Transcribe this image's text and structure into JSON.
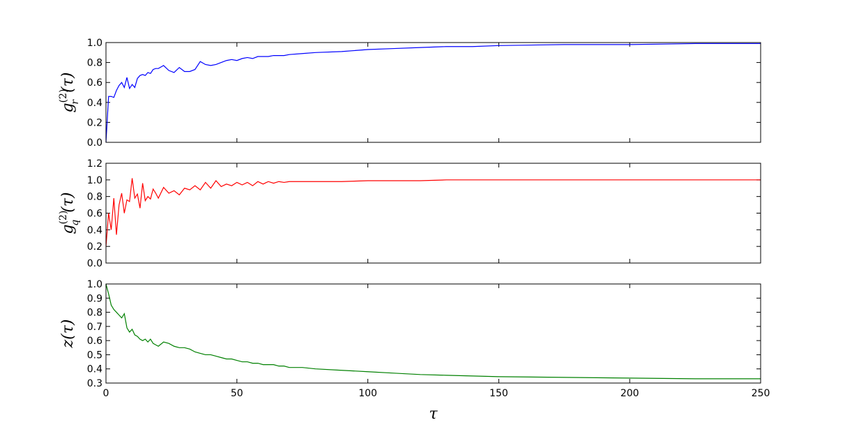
{
  "chart_data": [
    {
      "type": "line",
      "color": "#0000ff",
      "ylabel": {
        "base": "g",
        "sup": "(2)",
        "sub": "r",
        "arg": "(τ)"
      },
      "x": [
        0,
        1,
        2,
        3,
        4,
        5,
        6,
        7,
        8,
        9,
        10,
        11,
        12,
        13,
        14,
        15,
        16,
        17,
        18,
        19,
        20,
        22,
        24,
        26,
        28,
        30,
        32,
        34,
        36,
        38,
        40,
        42,
        44,
        46,
        48,
        50,
        52,
        54,
        56,
        58,
        60,
        62,
        64,
        66,
        68,
        70,
        75,
        80,
        90,
        100,
        110,
        120,
        130,
        140,
        150,
        175,
        200,
        225,
        250
      ],
      "values": [
        0.0,
        0.46,
        0.46,
        0.45,
        0.52,
        0.57,
        0.6,
        0.55,
        0.65,
        0.54,
        0.58,
        0.55,
        0.64,
        0.67,
        0.68,
        0.67,
        0.7,
        0.69,
        0.73,
        0.74,
        0.74,
        0.77,
        0.72,
        0.7,
        0.75,
        0.71,
        0.71,
        0.73,
        0.81,
        0.78,
        0.77,
        0.78,
        0.8,
        0.82,
        0.83,
        0.82,
        0.84,
        0.85,
        0.84,
        0.86,
        0.86,
        0.86,
        0.87,
        0.87,
        0.87,
        0.88,
        0.89,
        0.9,
        0.91,
        0.93,
        0.94,
        0.95,
        0.96,
        0.96,
        0.97,
        0.98,
        0.98,
        0.99,
        0.99
      ],
      "xlim": [
        0,
        250
      ],
      "xticks": [
        0,
        50,
        100,
        150,
        200,
        250
      ],
      "ylim": [
        0,
        1
      ],
      "yticks": [
        {
          "value": 0,
          "label": "0.0"
        },
        0.2,
        0.4,
        0.6,
        0.8,
        {
          "value": 1,
          "label": "1.0"
        }
      ]
    },
    {
      "type": "line",
      "color": "#ff0000",
      "ylabel": {
        "base": "g",
        "sup": "(2)",
        "sub": "q",
        "arg": "(τ)"
      },
      "x": [
        0,
        1,
        2,
        3,
        4,
        5,
        6,
        7,
        8,
        9,
        10,
        11,
        12,
        13,
        14,
        15,
        16,
        17,
        18,
        19,
        20,
        22,
        24,
        26,
        28,
        30,
        32,
        34,
        36,
        38,
        40,
        42,
        44,
        46,
        48,
        50,
        52,
        54,
        56,
        58,
        60,
        62,
        64,
        66,
        68,
        70,
        75,
        80,
        90,
        100,
        110,
        120,
        130,
        140,
        150,
        175,
        200,
        225,
        250
      ],
      "values": [
        0.2,
        0.6,
        0.4,
        0.78,
        0.34,
        0.7,
        0.84,
        0.6,
        0.76,
        0.74,
        1.02,
        0.78,
        0.83,
        0.66,
        0.96,
        0.75,
        0.8,
        0.77,
        0.89,
        0.84,
        0.78,
        0.91,
        0.84,
        0.87,
        0.82,
        0.9,
        0.88,
        0.93,
        0.88,
        0.97,
        0.9,
        0.99,
        0.92,
        0.95,
        0.93,
        0.97,
        0.94,
        0.97,
        0.93,
        0.98,
        0.95,
        0.98,
        0.96,
        0.98,
        0.97,
        0.98,
        0.98,
        0.98,
        0.98,
        0.99,
        0.99,
        0.99,
        1.0,
        1.0,
        1.0,
        1.0,
        1.0,
        1.0,
        1.0
      ],
      "xlim": [
        0,
        250
      ],
      "xticks": [
        0,
        50,
        100,
        150,
        200,
        250
      ],
      "ylim": [
        0,
        1.2
      ],
      "yticks": [
        {
          "value": 0,
          "label": "0.0"
        },
        0.2,
        0.4,
        0.6,
        0.8,
        {
          "value": 1,
          "label": "1.0"
        },
        1.2
      ]
    },
    {
      "type": "line",
      "color": "#008000",
      "ylabel": "z(τ)",
      "xlabel": "τ",
      "x": [
        0,
        1,
        2,
        3,
        4,
        5,
        6,
        7,
        8,
        9,
        10,
        11,
        12,
        13,
        14,
        15,
        16,
        17,
        18,
        19,
        20,
        22,
        24,
        26,
        28,
        30,
        32,
        34,
        36,
        38,
        40,
        42,
        44,
        46,
        48,
        50,
        52,
        54,
        56,
        58,
        60,
        62,
        64,
        66,
        68,
        70,
        75,
        80,
        90,
        100,
        110,
        120,
        130,
        140,
        150,
        175,
        200,
        225,
        250
      ],
      "values": [
        1.0,
        0.93,
        0.85,
        0.82,
        0.8,
        0.78,
        0.76,
        0.79,
        0.69,
        0.66,
        0.68,
        0.64,
        0.63,
        0.61,
        0.6,
        0.61,
        0.59,
        0.61,
        0.58,
        0.57,
        0.56,
        0.59,
        0.58,
        0.56,
        0.55,
        0.55,
        0.54,
        0.52,
        0.51,
        0.5,
        0.5,
        0.49,
        0.48,
        0.47,
        0.47,
        0.46,
        0.45,
        0.45,
        0.44,
        0.44,
        0.43,
        0.43,
        0.43,
        0.42,
        0.42,
        0.41,
        0.41,
        0.4,
        0.39,
        0.38,
        0.37,
        0.36,
        0.355,
        0.35,
        0.345,
        0.34,
        0.335,
        0.33,
        0.33
      ],
      "xlim": [
        0,
        250
      ],
      "xticks": [
        0,
        50,
        100,
        150,
        200,
        250
      ],
      "ylim": [
        0.3,
        1
      ],
      "yticks": [
        0.3,
        0.4,
        0.5,
        0.6,
        0.7,
        0.8,
        0.9,
        {
          "value": 1,
          "label": "1.0"
        }
      ]
    }
  ]
}
